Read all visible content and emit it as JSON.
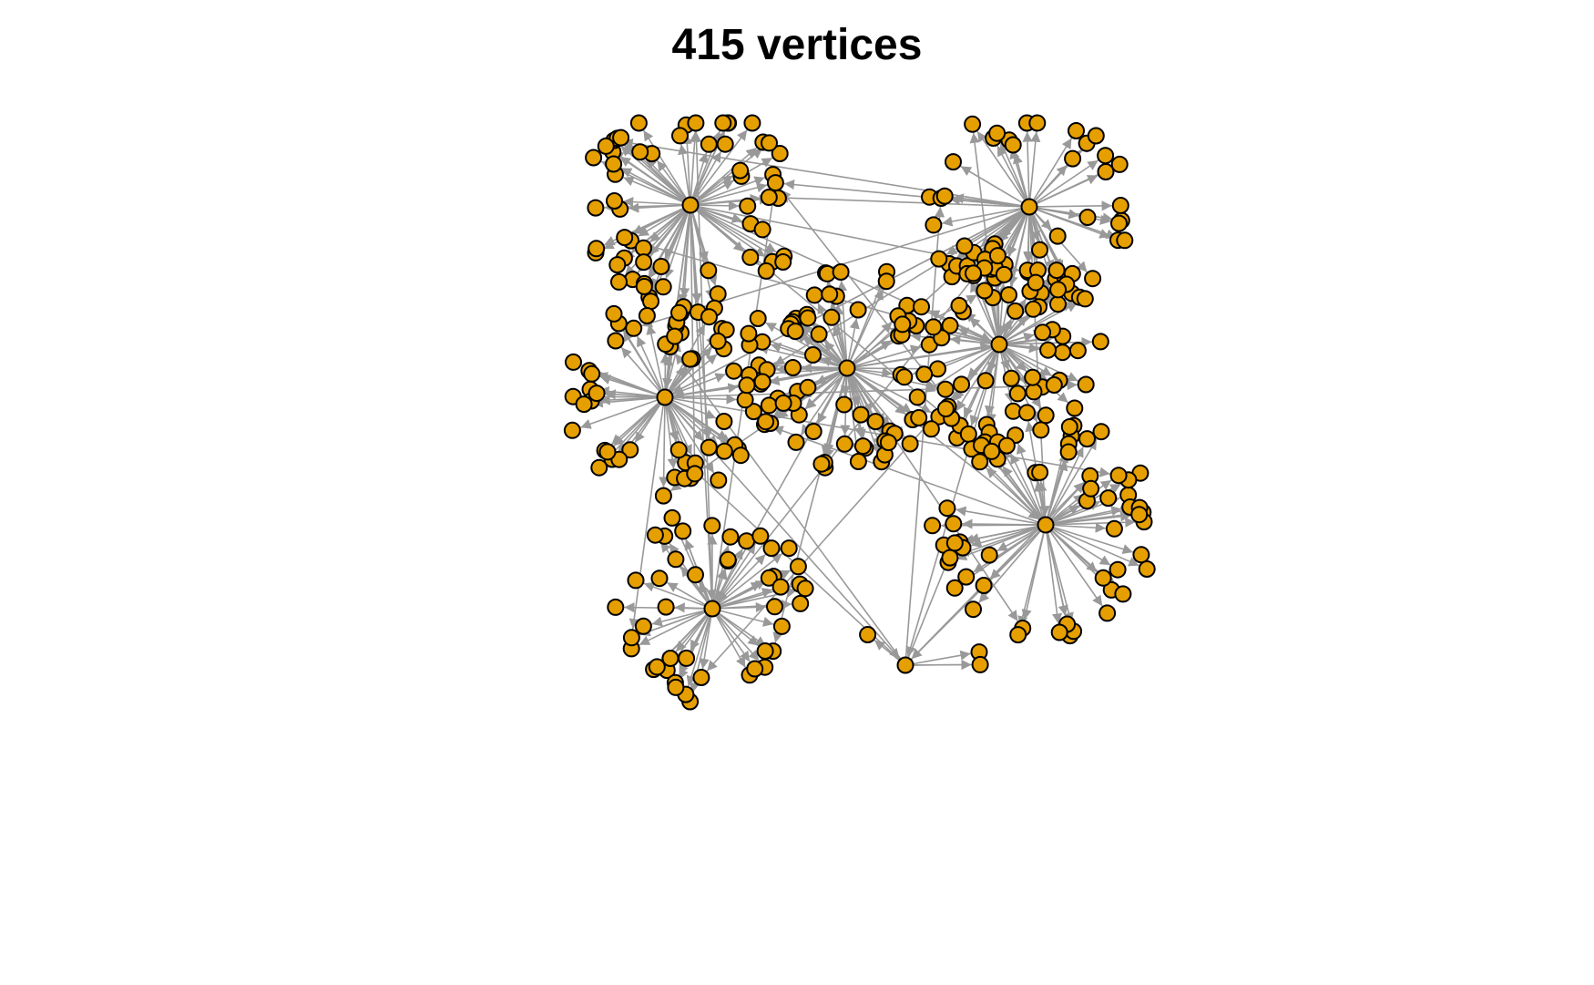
{
  "title": "415 vertices",
  "colors": {
    "vertex_fill": "#E69F00",
    "vertex_stroke": "#000000",
    "edge": "#999999",
    "background": "#ffffff"
  },
  "graph": {
    "vertex_count": 415,
    "directed": true
  }
}
